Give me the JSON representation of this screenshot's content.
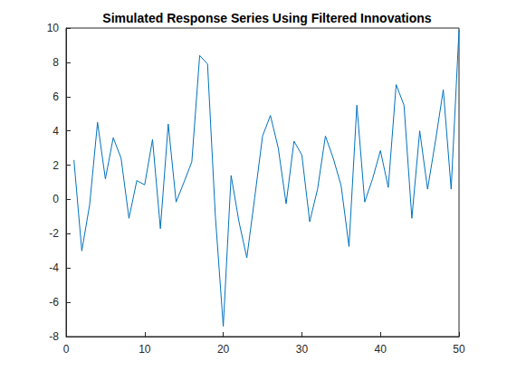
{
  "chart_data": {
    "type": "line",
    "title": "Simulated Response Series Using Filtered Innovations",
    "x": [
      1,
      2,
      3,
      4,
      5,
      6,
      7,
      8,
      9,
      10,
      11,
      12,
      13,
      14,
      15,
      16,
      17,
      18,
      19,
      20,
      21,
      22,
      23,
      24,
      25,
      26,
      27,
      28,
      29,
      30,
      31,
      32,
      33,
      34,
      35,
      36,
      37,
      38,
      39,
      40,
      41,
      42,
      43,
      44,
      45,
      46,
      47,
      48,
      49,
      50
    ],
    "values": [
      2.3,
      -3.0,
      -0.3,
      4.5,
      1.2,
      3.6,
      2.4,
      -1.1,
      1.1,
      0.85,
      3.5,
      -1.7,
      4.4,
      -0.15,
      1.0,
      2.2,
      8.4,
      7.9,
      -1.0,
      -7.4,
      1.4,
      -1.3,
      -3.4,
      0.1,
      3.7,
      4.9,
      3.0,
      -0.25,
      3.4,
      2.6,
      -1.3,
      0.6,
      3.7,
      2.4,
      0.8,
      -2.75,
      5.5,
      -0.15,
      1.2,
      2.85,
      0.7,
      6.7,
      5.5,
      -1.1,
      4.0,
      0.6,
      3.4,
      6.4,
      0.6,
      9.9
    ],
    "color": "#0072bd",
    "marker": "none",
    "xlim": [
      0,
      50
    ],
    "xticks": [
      0,
      10,
      20,
      30,
      40,
      50
    ],
    "ylim": [
      -8,
      10
    ],
    "yticks": [
      -8,
      -6,
      -4,
      -2,
      0,
      2,
      4,
      6,
      8,
      10
    ],
    "grid": false
  }
}
